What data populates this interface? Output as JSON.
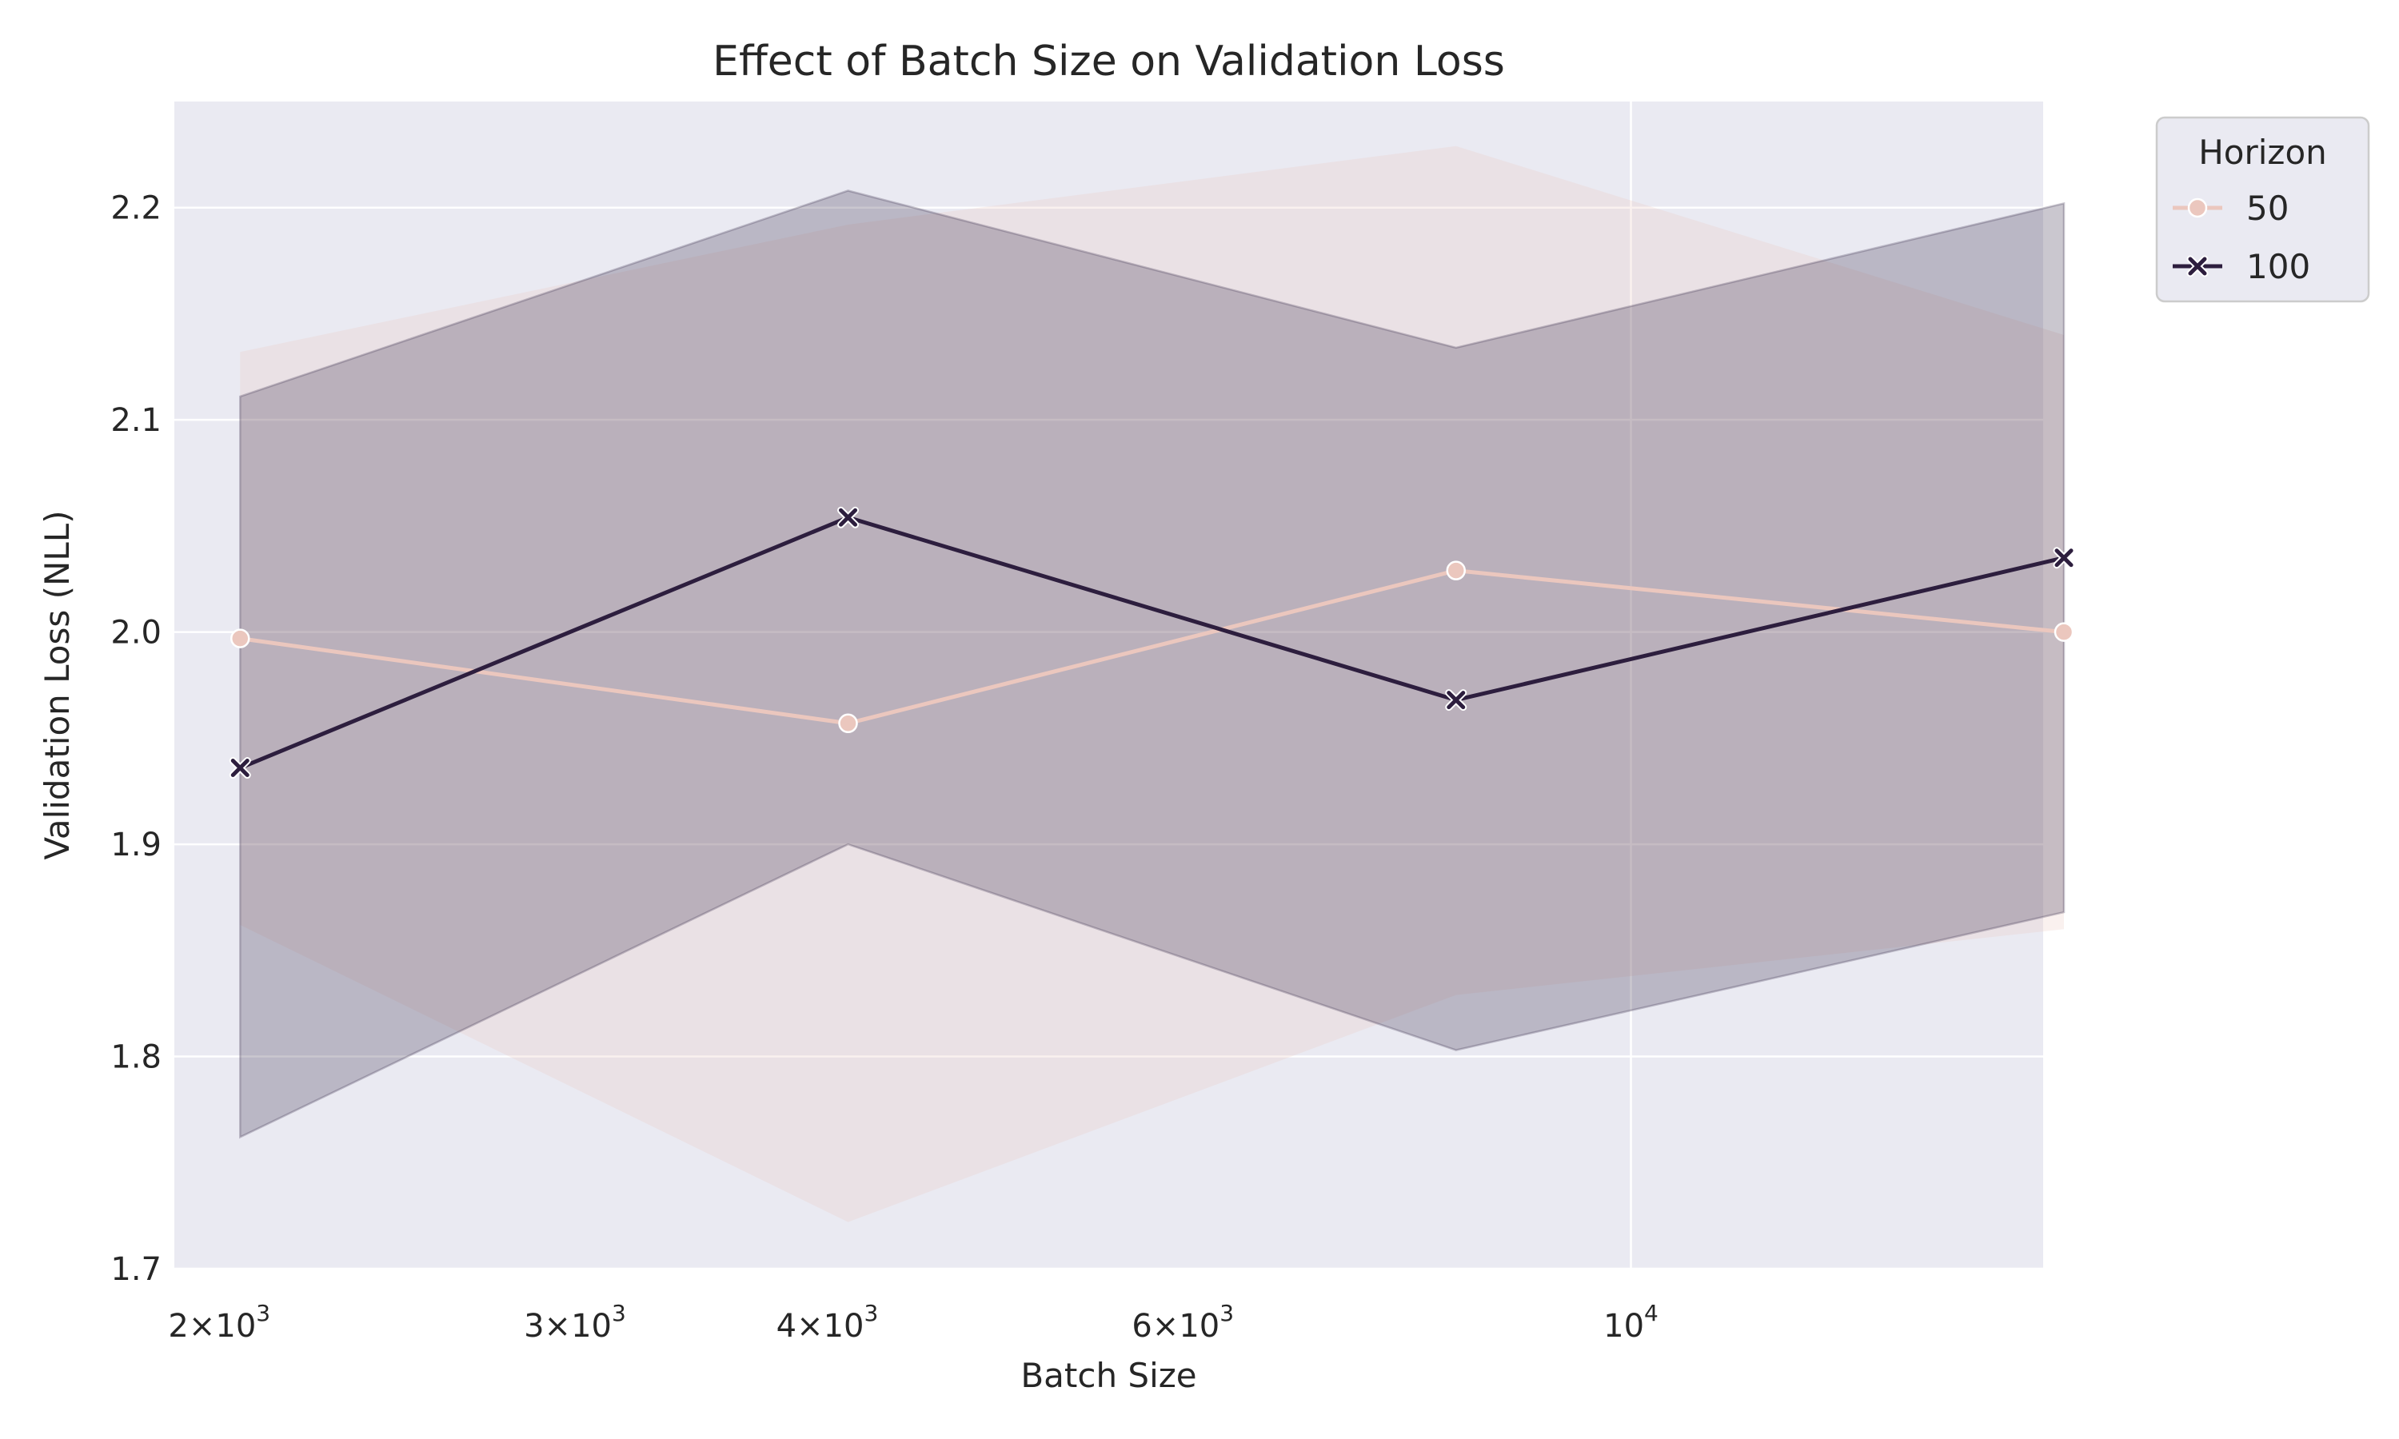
{
  "chart_data": {
    "type": "line",
    "title": "Effect of Batch Size on Validation Loss",
    "xlabel": "Batch Size",
    "ylabel": "Validation Loss (NLL)",
    "x_scale": "log",
    "x": [
      2048,
      4096,
      8192,
      16384
    ],
    "xlim": [
      1900,
      16000
    ],
    "ylim": [
      1.7,
      2.25
    ],
    "grid": true,
    "legend_position": "upper-right-outside",
    "legend_title": "Horizon",
    "x_ticks": [
      {
        "value": 2000,
        "mantissa": "2",
        "exponent": "3"
      },
      {
        "value": 3000,
        "mantissa": "3",
        "exponent": "3"
      },
      {
        "value": 4000,
        "mantissa": "4",
        "exponent": "3"
      },
      {
        "value": 6000,
        "mantissa": "6",
        "exponent": "3"
      },
      {
        "value": 10000,
        "mantissa": "",
        "exponent": "4"
      }
    ],
    "y_ticks": [
      {
        "value": 1.7,
        "label": "1.7"
      },
      {
        "value": 1.8,
        "label": "1.8"
      },
      {
        "value": 1.9,
        "label": "1.9"
      },
      {
        "value": 2.0,
        "label": "2.0"
      },
      {
        "value": 2.1,
        "label": "2.1"
      },
      {
        "value": 2.2,
        "label": "2.2"
      }
    ],
    "series": [
      {
        "name": "50",
        "marker": "circle",
        "color": "#ebc7be",
        "values": [
          1.997,
          1.957,
          2.029,
          2.0
        ],
        "ci_lower": [
          1.862,
          1.722,
          1.829,
          1.86
        ],
        "ci_upper": [
          2.132,
          2.192,
          2.229,
          2.14
        ]
      },
      {
        "name": "100",
        "marker": "x",
        "color": "#2d1e3e",
        "values": [
          1.936,
          2.054,
          1.968,
          2.035
        ],
        "ci_lower": [
          1.762,
          1.9,
          1.803,
          1.868
        ],
        "ci_upper": [
          2.111,
          2.208,
          2.134,
          2.202
        ]
      }
    ],
    "colors": {
      "background": "#eaeaf2",
      "grid": "#ffffff"
    }
  }
}
